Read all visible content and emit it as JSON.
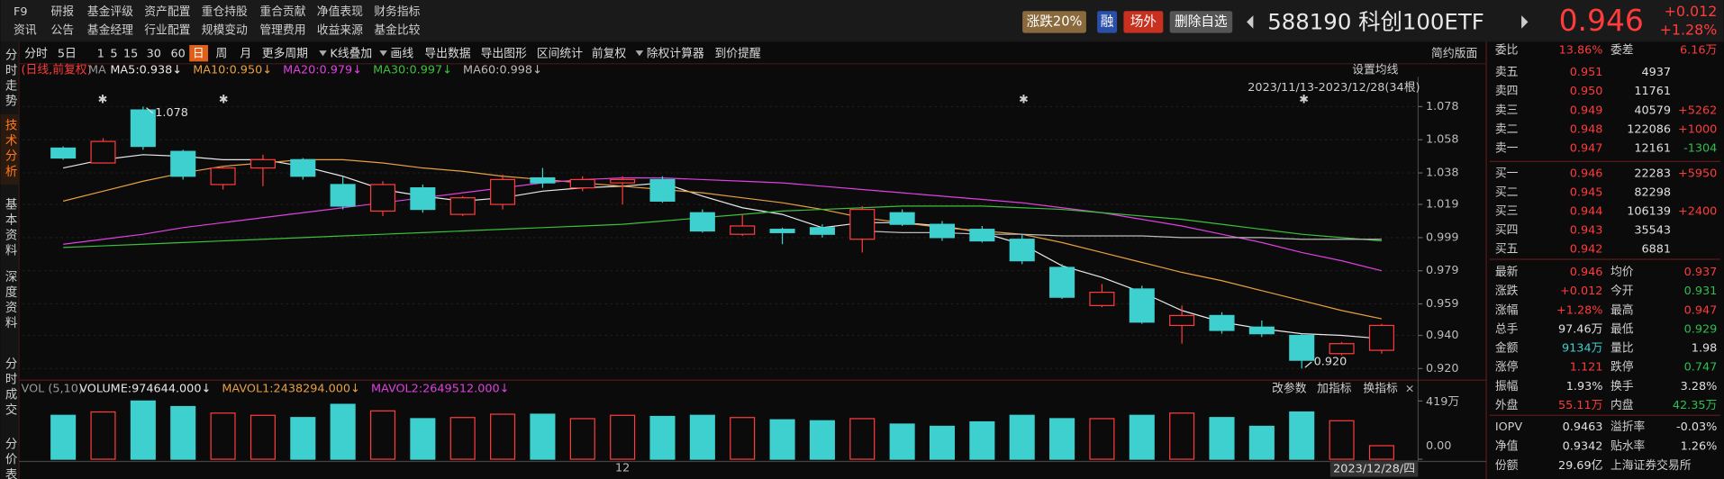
{
  "menu": {
    "row1": [
      "F9",
      "研报",
      "基金评级",
      "资产配置",
      "重仓持股",
      "重合贡献",
      "净值表现",
      "财务指标"
    ],
    "row2": [
      "资讯",
      "公告",
      "基金经理",
      "行业配置",
      "规模变动",
      "管理费用",
      "收益来源",
      "基金比较"
    ]
  },
  "header": {
    "buttons": [
      "涨跌20%",
      "融",
      "场外",
      "删除自选"
    ],
    "title": "588190 科创100ETF",
    "price": "0.946",
    "change": "+0.012",
    "change_pct": "+1.28%"
  },
  "side_tabs": [
    "分时走势",
    "技术分析",
    "基本资料",
    "深度资料",
    "分时成交",
    "分价表"
  ],
  "toolbar": {
    "items": [
      "分时",
      "5日",
      "1",
      "5",
      "15",
      "30",
      "60",
      "日",
      "周",
      "月",
      "更多周期",
      "K线叠加",
      "画线",
      "导出数据",
      "导出图形",
      "区间统计",
      "前复权",
      "除权计算器",
      "到价提醒"
    ],
    "right": "简约版面"
  },
  "chart_data": [
    {
      "type": "candlestick",
      "subtitle": "(日线,前复权)",
      "legend_prefix": "MA",
      "settings_label": "设置均线",
      "date_range": "2023/11/13-2023/12/28(34根)",
      "last_date": "2023/12/28/四",
      "up_color": "#ff3b3b",
      "down_color": "#3ecfcf",
      "grid": true,
      "ylim": [
        0.915,
        1.084
      ],
      "yticks": [
        1.078,
        1.058,
        1.038,
        1.019,
        0.999,
        0.979,
        0.959,
        {
          "value": 0.94,
          "label": "0.940"
        },
        {
          "value": 0.92,
          "label": "0.920"
        }
      ],
      "categories": [
        null,
        null,
        null,
        null,
        null,
        null,
        null,
        null,
        null,
        null,
        null,
        null,
        null,
        null,
        "12",
        null,
        null,
        null,
        null,
        null,
        null,
        null,
        null,
        null,
        null,
        null,
        null,
        null,
        null,
        null,
        null,
        null,
        null,
        null
      ],
      "open": [
        1.053,
        1.044,
        1.076,
        1.051,
        1.031,
        1.041,
        1.046,
        1.031,
        1.015,
        1.029,
        1.013,
        1.019,
        1.035,
        1.029,
        1.032,
        1.034,
        1.014,
        1.001,
        1.004,
        1.005,
        0.998,
        1.014,
        1.007,
        1.004,
        0.998,
        0.981,
        0.958,
        0.968,
        0.946,
        0.952,
        0.945,
        0.94,
        0.929,
        0.931
      ],
      "high": [
        1.054,
        1.059,
        1.078,
        1.052,
        1.042,
        1.049,
        1.047,
        1.036,
        1.033,
        1.031,
        1.024,
        1.037,
        1.041,
        1.036,
        1.036,
        1.036,
        1.016,
        1.013,
        1.005,
        1.007,
        1.018,
        1.016,
        1.009,
        1.006,
        1.001,
        0.983,
        0.971,
        0.97,
        0.958,
        0.954,
        0.949,
        0.941,
        0.936,
        0.947
      ],
      "low": [
        1.046,
        1.044,
        1.052,
        1.034,
        1.028,
        1.03,
        1.034,
        1.016,
        1.012,
        1.014,
        1.012,
        1.016,
        1.029,
        1.027,
        1.019,
        1.02,
        1.002,
        1.0,
        0.995,
        0.999,
        0.99,
        1.006,
        0.997,
        0.996,
        0.983,
        0.962,
        0.957,
        0.947,
        0.935,
        0.941,
        0.939,
        0.92,
        0.928,
        0.929
      ],
      "close": [
        1.047,
        1.057,
        1.054,
        1.036,
        1.041,
        1.046,
        1.036,
        1.018,
        1.031,
        1.016,
        1.023,
        1.034,
        1.032,
        1.034,
        1.034,
        1.021,
        1.003,
        1.006,
        1.002,
        1.001,
        1.016,
        1.007,
        0.999,
        0.997,
        0.985,
        0.963,
        0.966,
        0.948,
        0.952,
        0.943,
        0.941,
        0.925,
        0.935,
        0.946
      ],
      "series": [
        {
          "name": "MA5:0.938↓",
          "color": "#e8e8e8",
          "values": [
            1.041,
            1.046,
            1.049,
            1.048,
            1.046,
            1.046,
            1.042,
            1.036,
            1.028,
            1.024,
            1.021,
            1.023,
            1.027,
            1.029,
            1.03,
            1.032,
            1.024,
            1.017,
            1.013,
            1.005,
            1.008,
            1.008,
            1.006,
            1.002,
            0.995,
            0.982,
            0.975,
            0.966,
            0.955,
            0.948,
            0.944,
            0.941,
            0.94,
            0.938
          ]
        },
        {
          "name": "MA10:0.950↓",
          "color": "#e8a040",
          "values": [
            1.021,
            1.027,
            1.033,
            1.038,
            1.042,
            1.044,
            1.046,
            1.046,
            1.044,
            1.041,
            1.039,
            1.036,
            1.034,
            1.032,
            1.03,
            1.028,
            1.026,
            1.023,
            1.02,
            1.016,
            1.011,
            1.008,
            1.005,
            1.003,
            1.001,
            0.996,
            0.99,
            0.984,
            0.978,
            0.973,
            0.967,
            0.961,
            0.955,
            0.95
          ]
        },
        {
          "name": "MA20:0.979↓",
          "color": "#e040e0",
          "values": [
            0.995,
            0.998,
            1.001,
            1.005,
            1.008,
            1.011,
            1.014,
            1.017,
            1.02,
            1.023,
            1.026,
            1.029,
            1.032,
            1.034,
            1.035,
            1.035,
            1.034,
            1.033,
            1.032,
            1.03,
            1.028,
            1.026,
            1.024,
            1.022,
            1.02,
            1.017,
            1.014,
            1.01,
            1.006,
            1.001,
            0.996,
            0.99,
            0.985,
            0.979
          ]
        },
        {
          "name": "MA30:0.997↓",
          "color": "#3cc03c",
          "values": [
            0.993,
            0.994,
            0.995,
            0.996,
            0.997,
            0.998,
            0.999,
            1.0,
            1.001,
            1.002,
            1.003,
            1.004,
            1.005,
            1.006,
            1.007,
            1.009,
            1.011,
            1.013,
            1.015,
            1.016,
            1.017,
            1.018,
            1.018,
            1.018,
            1.017,
            1.016,
            1.014,
            1.012,
            1.01,
            1.007,
            1.004,
            1.001,
            0.999,
            0.997
          ]
        },
        {
          "name": "MA60:0.998↓",
          "color": "#bbbbbb",
          "values": [
            null,
            null,
            null,
            null,
            null,
            null,
            null,
            null,
            null,
            null,
            null,
            null,
            null,
            null,
            null,
            null,
            null,
            null,
            null,
            null,
            1.003,
            1.002,
            1.002,
            1.001,
            1.001,
            1.0,
            1.0,
            1.0,
            0.999,
            0.999,
            0.999,
            0.998,
            0.998,
            0.998
          ]
        }
      ],
      "annotations": [
        {
          "text": "1.078"
        },
        {
          "text": "0.920"
        }
      ]
    },
    {
      "type": "bar",
      "title": "VOL (5,10)",
      "legend": [
        {
          "name": "VOLUME:974644.000↓",
          "color": "#e8e8e8"
        },
        {
          "name": "MAVOL1:2438294.000↓",
          "color": "#e8a040"
        },
        {
          "name": "MAVOL2:2649512.000↓",
          "color": "#e040e0"
        }
      ],
      "buttons": [
        "改参数",
        "加指标",
        "换指标"
      ],
      "ylim": [
        0,
        419
      ],
      "yticks": [
        {
          "value": 419,
          "label": "419万"
        },
        {
          "value": 0,
          "label": "0.00"
        }
      ],
      "values": [
        316,
        340,
        419,
        379,
        332,
        316,
        300,
        395,
        348,
        292,
        300,
        324,
        324,
        292,
        316,
        308,
        316,
        300,
        284,
        277,
        292,
        253,
        237,
        269,
        316,
        292,
        292,
        316,
        332,
        300,
        237,
        340,
        277,
        97.46
      ]
    }
  ],
  "order_book": {
    "summary": [
      "委比",
      "13.86%",
      "委差",
      "6.16万"
    ],
    "asks": [
      [
        "卖五",
        "0.951",
        "4937"
      ],
      [
        "卖四",
        "0.950",
        "11761"
      ],
      [
        "卖三",
        "0.949",
        "40579",
        "+5262"
      ],
      [
        "卖二",
        "0.948",
        "122086",
        "+1000"
      ],
      [
        "卖一",
        "0.947",
        "12161",
        "-1304"
      ]
    ],
    "bids": [
      [
        "买一",
        "0.946",
        "22283",
        "+5950"
      ],
      [
        "买二",
        "0.945",
        "82298"
      ],
      [
        "买三",
        "0.944",
        "106139",
        "+2400"
      ],
      [
        "买四",
        "0.943",
        "35543"
      ],
      [
        "买五",
        "0.942",
        "6881"
      ]
    ]
  },
  "stats": [
    [
      "最新",
      "0.946",
      "均价",
      "0.937"
    ],
    [
      "涨跌",
      "+0.012",
      "今开",
      "0.931"
    ],
    [
      "涨幅",
      "+1.28%",
      "最高",
      "0.947"
    ],
    [
      "总手",
      "97.46万",
      "最低",
      "0.929"
    ],
    [
      "金额",
      "9134万",
      "量比",
      "1.98"
    ],
    [
      "涨停",
      "1.121",
      "跌停",
      "0.747"
    ],
    [
      "振幅",
      "1.93%",
      "换手",
      "3.28%"
    ],
    [
      "外盘",
      "55.11万",
      "内盘",
      "42.35万"
    ]
  ],
  "fund": [
    [
      "IOPV",
      "0.9463",
      "溢折率",
      "-0.03%"
    ],
    [
      "净值",
      "0.9342",
      "贴水率",
      "1.26%"
    ],
    [
      "份额",
      "29.69亿",
      "上海证券交易所"
    ]
  ]
}
